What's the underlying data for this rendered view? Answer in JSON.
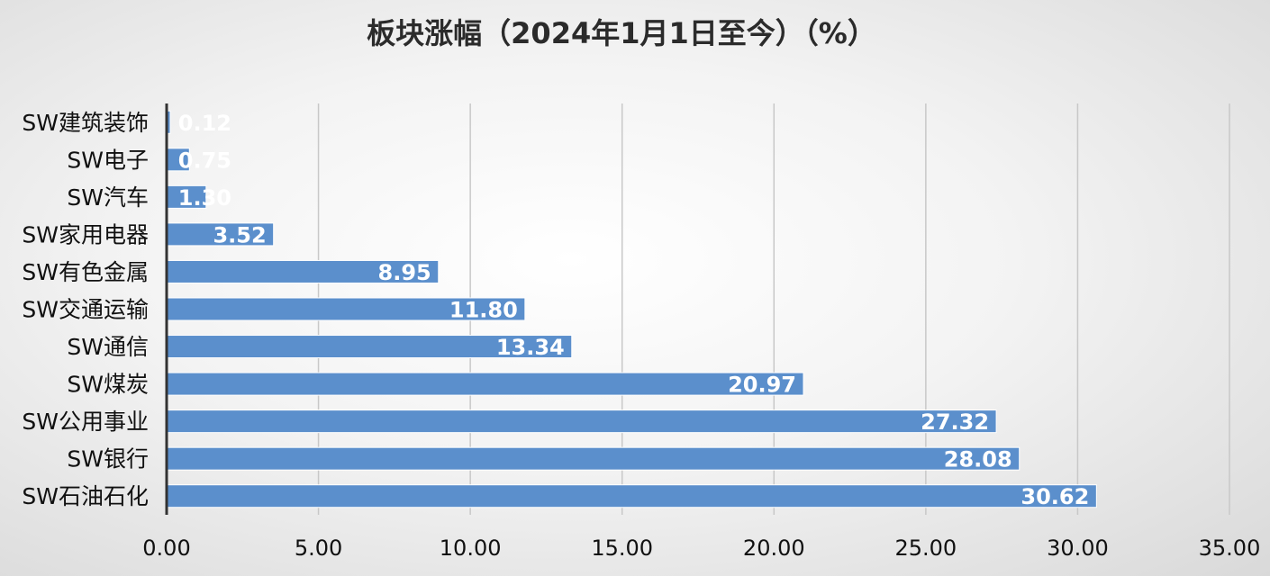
{
  "chart_data": {
    "type": "bar",
    "orientation": "horizontal",
    "title": "板块涨幅（2024年1月1日至今）（%）",
    "categories": [
      "SW建筑装饰",
      "SW电子",
      "SW汽车",
      "SW家用电器",
      "SW有色金属",
      "SW交通运输",
      "SW通信",
      "SW煤炭",
      "SW公用事业",
      "SW银行",
      "SW石油石化"
    ],
    "values": [
      0.12,
      0.75,
      1.3,
      3.52,
      8.95,
      11.8,
      13.34,
      20.97,
      27.32,
      28.08,
      30.62
    ],
    "value_labels": [
      "0.12",
      "0.75",
      "1.30",
      "3.52",
      "8.95",
      "11.80",
      "13.34",
      "20.97",
      "27.32",
      "28.08",
      "30.62"
    ],
    "xlim": [
      0,
      35
    ],
    "xticks": [
      "0.00",
      "5.00",
      "10.00",
      "15.00",
      "20.00",
      "25.00",
      "30.00",
      "35.00"
    ],
    "xtick_values": [
      0,
      5,
      10,
      15,
      20,
      25,
      30,
      35
    ],
    "grid": "vertical",
    "legend": "none",
    "bar_color": "#5b8fcc",
    "bar_edge_color": "#ffffff",
    "grid_color": "#c8c8c8",
    "axis_color": "#333333"
  }
}
